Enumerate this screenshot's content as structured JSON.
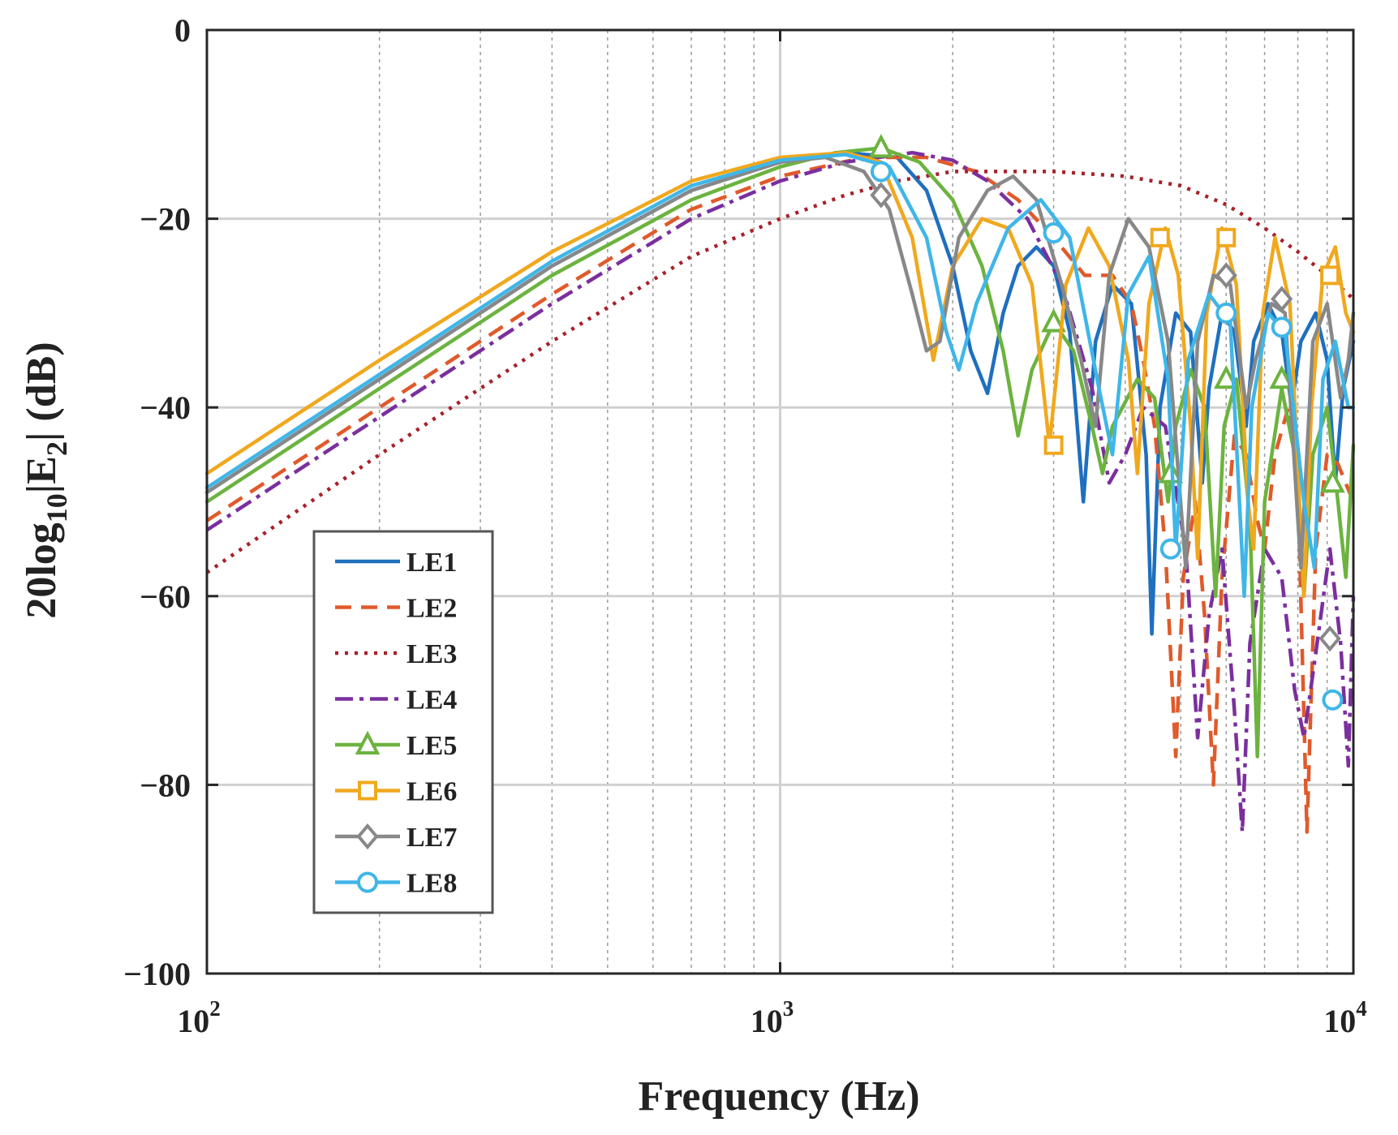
{
  "chart_data": {
    "type": "line",
    "xscale": "log",
    "xlim": [
      100,
      10000
    ],
    "ylim": [
      -100,
      0
    ],
    "grid": true,
    "legend_position": "bottom-left",
    "ylabel": {
      "prefix": "20log",
      "sub1": "10",
      "mid": "|E",
      "sub2": "2",
      "suffix": "| (dB)"
    },
    "xlabel": "Frequency (Hz)",
    "xticks": [
      {
        "value": 100,
        "base": "10",
        "exp": "2"
      },
      {
        "value": 1000,
        "base": "10",
        "exp": "3"
      },
      {
        "value": 10000,
        "base": "10",
        "exp": "4"
      }
    ],
    "yticks": [
      {
        "value": 0,
        "label": "0"
      },
      {
        "value": -20,
        "label": "−20"
      },
      {
        "value": -40,
        "label": "−40"
      },
      {
        "value": -60,
        "label": "−60"
      },
      {
        "value": -80,
        "label": "−80"
      },
      {
        "value": -100,
        "label": "−100"
      }
    ],
    "series": [
      {
        "name": "LE1",
        "color": "#1f6fbf",
        "dash": "solid",
        "marker": "none",
        "points": [
          [
            100,
            -49
          ],
          [
            200,
            -37
          ],
          [
            400,
            -25
          ],
          [
            700,
            -17
          ],
          [
            1000,
            -14
          ],
          [
            1300,
            -13
          ],
          [
            1600,
            -13.5
          ],
          [
            1800,
            -17
          ],
          [
            2000,
            -25
          ],
          [
            2150,
            -34
          ],
          [
            2300,
            -38.5
          ],
          [
            2450,
            -30
          ],
          [
            2600,
            -25
          ],
          [
            2800,
            -23
          ],
          [
            3000,
            -25
          ],
          [
            3200,
            -32
          ],
          [
            3380,
            -50
          ],
          [
            3550,
            -33
          ],
          [
            3800,
            -27
          ],
          [
            4100,
            -29
          ],
          [
            4350,
            -45
          ],
          [
            4450,
            -64
          ],
          [
            4600,
            -40
          ],
          [
            4900,
            -30
          ],
          [
            5200,
            -32
          ],
          [
            5450,
            -48
          ],
          [
            5600,
            -38
          ],
          [
            5900,
            -30
          ],
          [
            6200,
            -32
          ],
          [
            6500,
            -42
          ],
          [
            6700,
            -33
          ],
          [
            7100,
            -29
          ],
          [
            7500,
            -32
          ],
          [
            7800,
            -40
          ],
          [
            8100,
            -33
          ],
          [
            8600,
            -30
          ],
          [
            9000,
            -35
          ],
          [
            9300,
            -48
          ],
          [
            9600,
            -38
          ],
          [
            10000,
            -33
          ]
        ]
      },
      {
        "name": "LE2",
        "color": "#e05a2b",
        "dash": "20,12",
        "marker": "none",
        "points": [
          [
            100,
            -52
          ],
          [
            200,
            -40
          ],
          [
            400,
            -28
          ],
          [
            700,
            -19
          ],
          [
            1000,
            -15.5
          ],
          [
            1400,
            -13.5
          ],
          [
            1800,
            -13.5
          ],
          [
            2200,
            -15
          ],
          [
            2600,
            -18
          ],
          [
            3000,
            -22
          ],
          [
            3400,
            -26
          ],
          [
            3800,
            -26
          ],
          [
            4100,
            -29
          ],
          [
            4300,
            -35
          ],
          [
            4500,
            -42
          ],
          [
            4700,
            -55
          ],
          [
            4900,
            -77
          ],
          [
            5050,
            -58
          ],
          [
            5300,
            -50
          ],
          [
            5500,
            -62
          ],
          [
            5700,
            -80
          ],
          [
            5900,
            -58
          ],
          [
            6200,
            -43
          ],
          [
            6500,
            -45
          ],
          [
            6800,
            -52
          ],
          [
            7000,
            -55
          ],
          [
            7300,
            -45
          ],
          [
            7700,
            -40
          ],
          [
            8000,
            -48
          ],
          [
            8300,
            -85
          ],
          [
            8600,
            -55
          ],
          [
            9000,
            -45
          ],
          [
            9400,
            -46
          ],
          [
            10000,
            -50
          ]
        ]
      },
      {
        "name": "LE3",
        "color": "#a8202a",
        "dash": "4,8",
        "marker": "none",
        "points": [
          [
            100,
            -57.5
          ],
          [
            200,
            -45
          ],
          [
            400,
            -33
          ],
          [
            700,
            -24
          ],
          [
            1000,
            -20
          ],
          [
            1300,
            -17.5
          ],
          [
            1600,
            -16
          ],
          [
            2000,
            -15
          ],
          [
            2500,
            -15
          ],
          [
            3000,
            -15
          ],
          [
            4000,
            -15.5
          ],
          [
            5000,
            -16.5
          ],
          [
            6000,
            -18.5
          ],
          [
            7000,
            -21
          ],
          [
            8000,
            -23.5
          ],
          [
            9000,
            -26
          ],
          [
            10000,
            -28.5
          ]
        ]
      },
      {
        "name": "LE4",
        "color": "#7b2f9e",
        "dash": "22,8,5,8",
        "marker": "none",
        "points": [
          [
            100,
            -53
          ],
          [
            200,
            -41
          ],
          [
            400,
            -29
          ],
          [
            700,
            -20
          ],
          [
            1000,
            -16
          ],
          [
            1300,
            -14
          ],
          [
            1700,
            -13
          ],
          [
            2000,
            -13.8
          ],
          [
            2300,
            -16
          ],
          [
            2700,
            -20
          ],
          [
            3100,
            -27
          ],
          [
            3500,
            -38
          ],
          [
            3750,
            -48
          ],
          [
            4000,
            -45
          ],
          [
            4300,
            -40
          ],
          [
            4700,
            -42
          ],
          [
            5100,
            -55
          ],
          [
            5350,
            -75
          ],
          [
            5600,
            -62
          ],
          [
            5900,
            -55
          ],
          [
            6200,
            -72
          ],
          [
            6400,
            -85
          ],
          [
            6600,
            -65
          ],
          [
            7000,
            -55
          ],
          [
            7500,
            -58
          ],
          [
            7900,
            -70
          ],
          [
            8200,
            -75
          ],
          [
            8600,
            -66
          ],
          [
            9100,
            -55
          ],
          [
            9500,
            -65
          ],
          [
            9800,
            -78
          ],
          [
            10000,
            -60
          ]
        ]
      },
      {
        "name": "LE5",
        "color": "#6cb33f",
        "dash": "solid",
        "marker": "triangle",
        "points": [
          [
            100,
            -50
          ],
          [
            200,
            -38
          ],
          [
            400,
            -26
          ],
          [
            700,
            -18
          ],
          [
            1000,
            -14.5
          ],
          [
            1250,
            -13
          ],
          [
            1500,
            -12.5
          ],
          [
            1750,
            -14
          ],
          [
            2000,
            -18
          ],
          [
            2250,
            -25
          ],
          [
            2450,
            -34
          ],
          [
            2600,
            -43
          ],
          [
            2750,
            -36
          ],
          [
            3000,
            -31
          ],
          [
            3250,
            -34
          ],
          [
            3500,
            -42
          ],
          [
            3650,
            -47
          ],
          [
            3800,
            -42
          ],
          [
            4200,
            -37
          ],
          [
            4500,
            -39
          ],
          [
            4750,
            -50
          ],
          [
            4900,
            -42
          ],
          [
            5200,
            -36
          ],
          [
            5500,
            -40
          ],
          [
            5750,
            -60
          ],
          [
            5950,
            -42
          ],
          [
            6250,
            -37
          ],
          [
            6600,
            -52
          ],
          [
            6800,
            -77
          ],
          [
            7000,
            -50
          ],
          [
            7500,
            -38
          ],
          [
            7900,
            -45
          ],
          [
            8200,
            -60
          ],
          [
            8500,
            -45
          ],
          [
            9000,
            -40
          ],
          [
            9400,
            -50
          ],
          [
            9700,
            -58
          ],
          [
            10000,
            -44
          ]
        ],
        "markers": [
          [
            1500,
            -12.5
          ],
          [
            3000,
            -31
          ],
          [
            4800,
            -47
          ],
          [
            6000,
            -37
          ],
          [
            7500,
            -37
          ],
          [
            9200,
            -48
          ]
        ]
      },
      {
        "name": "LE6",
        "color": "#f0a81e",
        "dash": "solid",
        "marker": "square",
        "points": [
          [
            100,
            -47
          ],
          [
            200,
            -35
          ],
          [
            400,
            -23.5
          ],
          [
            700,
            -16
          ],
          [
            1000,
            -13.5
          ],
          [
            1300,
            -13
          ],
          [
            1500,
            -14
          ],
          [
            1700,
            -22
          ],
          [
            1850,
            -35
          ],
          [
            2000,
            -25
          ],
          [
            2250,
            -20
          ],
          [
            2500,
            -21
          ],
          [
            2750,
            -27
          ],
          [
            2950,
            -44
          ],
          [
            3150,
            -27
          ],
          [
            3450,
            -21
          ],
          [
            3750,
            -25
          ],
          [
            4050,
            -35
          ],
          [
            4200,
            -47
          ],
          [
            4400,
            -29
          ],
          [
            4700,
            -21
          ],
          [
            4950,
            -26
          ],
          [
            5200,
            -42
          ],
          [
            5350,
            -56
          ],
          [
            5550,
            -30
          ],
          [
            5900,
            -21
          ],
          [
            6250,
            -27
          ],
          [
            6550,
            -50
          ],
          [
            6700,
            -55
          ],
          [
            6950,
            -30
          ],
          [
            7300,
            -22
          ],
          [
            7750,
            -29
          ],
          [
            8200,
            -60
          ],
          [
            8450,
            -40
          ],
          [
            8850,
            -26
          ],
          [
            9300,
            -23
          ],
          [
            9700,
            -30
          ],
          [
            10000,
            -32
          ]
        ],
        "markers": [
          [
            3000,
            -44
          ],
          [
            4600,
            -22
          ],
          [
            6000,
            -22
          ],
          [
            9100,
            -26
          ]
        ]
      },
      {
        "name": "LE7",
        "color": "#888888",
        "dash": "solid",
        "marker": "diamond",
        "points": [
          [
            100,
            -49
          ],
          [
            200,
            -37
          ],
          [
            400,
            -25
          ],
          [
            700,
            -17
          ],
          [
            1000,
            -14
          ],
          [
            1200,
            -13.5
          ],
          [
            1400,
            -15
          ],
          [
            1550,
            -19
          ],
          [
            1700,
            -28
          ],
          [
            1800,
            -34
          ],
          [
            1900,
            -33
          ],
          [
            2050,
            -22
          ],
          [
            2300,
            -17
          ],
          [
            2550,
            -15.5
          ],
          [
            2800,
            -18
          ],
          [
            3100,
            -27
          ],
          [
            3350,
            -35
          ],
          [
            3550,
            -42
          ],
          [
            3750,
            -26
          ],
          [
            4050,
            -20
          ],
          [
            4400,
            -23
          ],
          [
            4750,
            -33
          ],
          [
            5100,
            -57
          ],
          [
            5350,
            -33
          ],
          [
            5700,
            -26
          ],
          [
            6100,
            -27
          ],
          [
            6500,
            -40
          ],
          [
            6750,
            -35
          ],
          [
            7200,
            -29
          ],
          [
            7600,
            -30
          ],
          [
            8100,
            -57
          ],
          [
            8500,
            -33
          ],
          [
            9000,
            -29
          ],
          [
            9500,
            -39
          ],
          [
            9800,
            -35
          ],
          [
            10000,
            -30
          ]
        ],
        "markers": [
          [
            1500,
            -17.5
          ],
          [
            6000,
            -26
          ],
          [
            7500,
            -28.5
          ],
          [
            9100,
            -64.5
          ]
        ]
      },
      {
        "name": "LE8",
        "color": "#3fb6e8",
        "dash": "solid",
        "marker": "circle",
        "points": [
          [
            100,
            -48.5
          ],
          [
            200,
            -36.5
          ],
          [
            400,
            -24.5
          ],
          [
            700,
            -16.5
          ],
          [
            1000,
            -13.8
          ],
          [
            1300,
            -13.2
          ],
          [
            1550,
            -14.5
          ],
          [
            1800,
            -22
          ],
          [
            1950,
            -32
          ],
          [
            2050,
            -36
          ],
          [
            2200,
            -29
          ],
          [
            2500,
            -21
          ],
          [
            2850,
            -18
          ],
          [
            3200,
            -22
          ],
          [
            3600,
            -38
          ],
          [
            3800,
            -45
          ],
          [
            4050,
            -28
          ],
          [
            4400,
            -24
          ],
          [
            4750,
            -37
          ],
          [
            4900,
            -55
          ],
          [
            5150,
            -35
          ],
          [
            5600,
            -28
          ],
          [
            6100,
            -31
          ],
          [
            6450,
            -60
          ],
          [
            6650,
            -40
          ],
          [
            7100,
            -30
          ],
          [
            7600,
            -32
          ],
          [
            8200,
            -50
          ],
          [
            8550,
            -57
          ],
          [
            8850,
            -37
          ],
          [
            9300,
            -33
          ],
          [
            9800,
            -40
          ],
          [
            10000,
            -40
          ]
        ],
        "markers": [
          [
            1500,
            -15
          ],
          [
            3000,
            -21.5
          ],
          [
            4800,
            -55
          ],
          [
            6000,
            -30
          ],
          [
            7500,
            -31.5
          ],
          [
            9200,
            -71
          ]
        ]
      }
    ]
  }
}
